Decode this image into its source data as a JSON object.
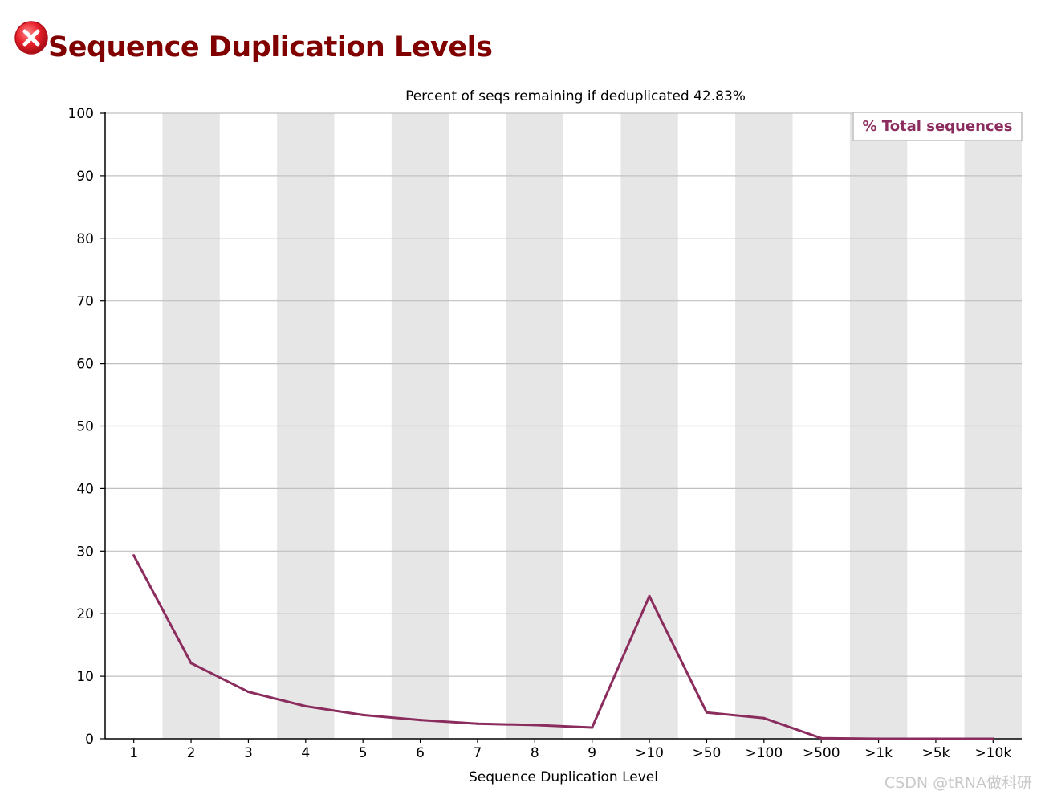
{
  "header": {
    "title": "Sequence Duplication Levels",
    "status_icon": "error-icon",
    "status_color": "#e8202a"
  },
  "watermark": "CSDN @tRNA做科研",
  "chart_data": {
    "type": "line",
    "title": "Percent of seqs remaining if deduplicated 42.83%",
    "xlabel": "Sequence Duplication Level",
    "ylabel": "",
    "ylim": [
      0,
      100
    ],
    "yticks": [
      0,
      10,
      20,
      30,
      40,
      50,
      60,
      70,
      80,
      90,
      100
    ],
    "categories": [
      "1",
      "2",
      "3",
      "4",
      "5",
      "6",
      "7",
      "8",
      "9",
      ">10",
      ">50",
      ">100",
      ">500",
      ">1k",
      ">5k",
      ">10k"
    ],
    "series": [
      {
        "name": "% Total sequences",
        "color": "#8b2c5e",
        "values": [
          29.3,
          12.1,
          7.5,
          5.2,
          3.8,
          3.0,
          2.4,
          2.2,
          1.8,
          22.8,
          4.2,
          3.3,
          0.1,
          0.0,
          0.0,
          0.0
        ]
      }
    ],
    "legend": "top-right",
    "grid": true,
    "band_color": "#e6e6e6",
    "grid_color": "#c0c0c0"
  }
}
